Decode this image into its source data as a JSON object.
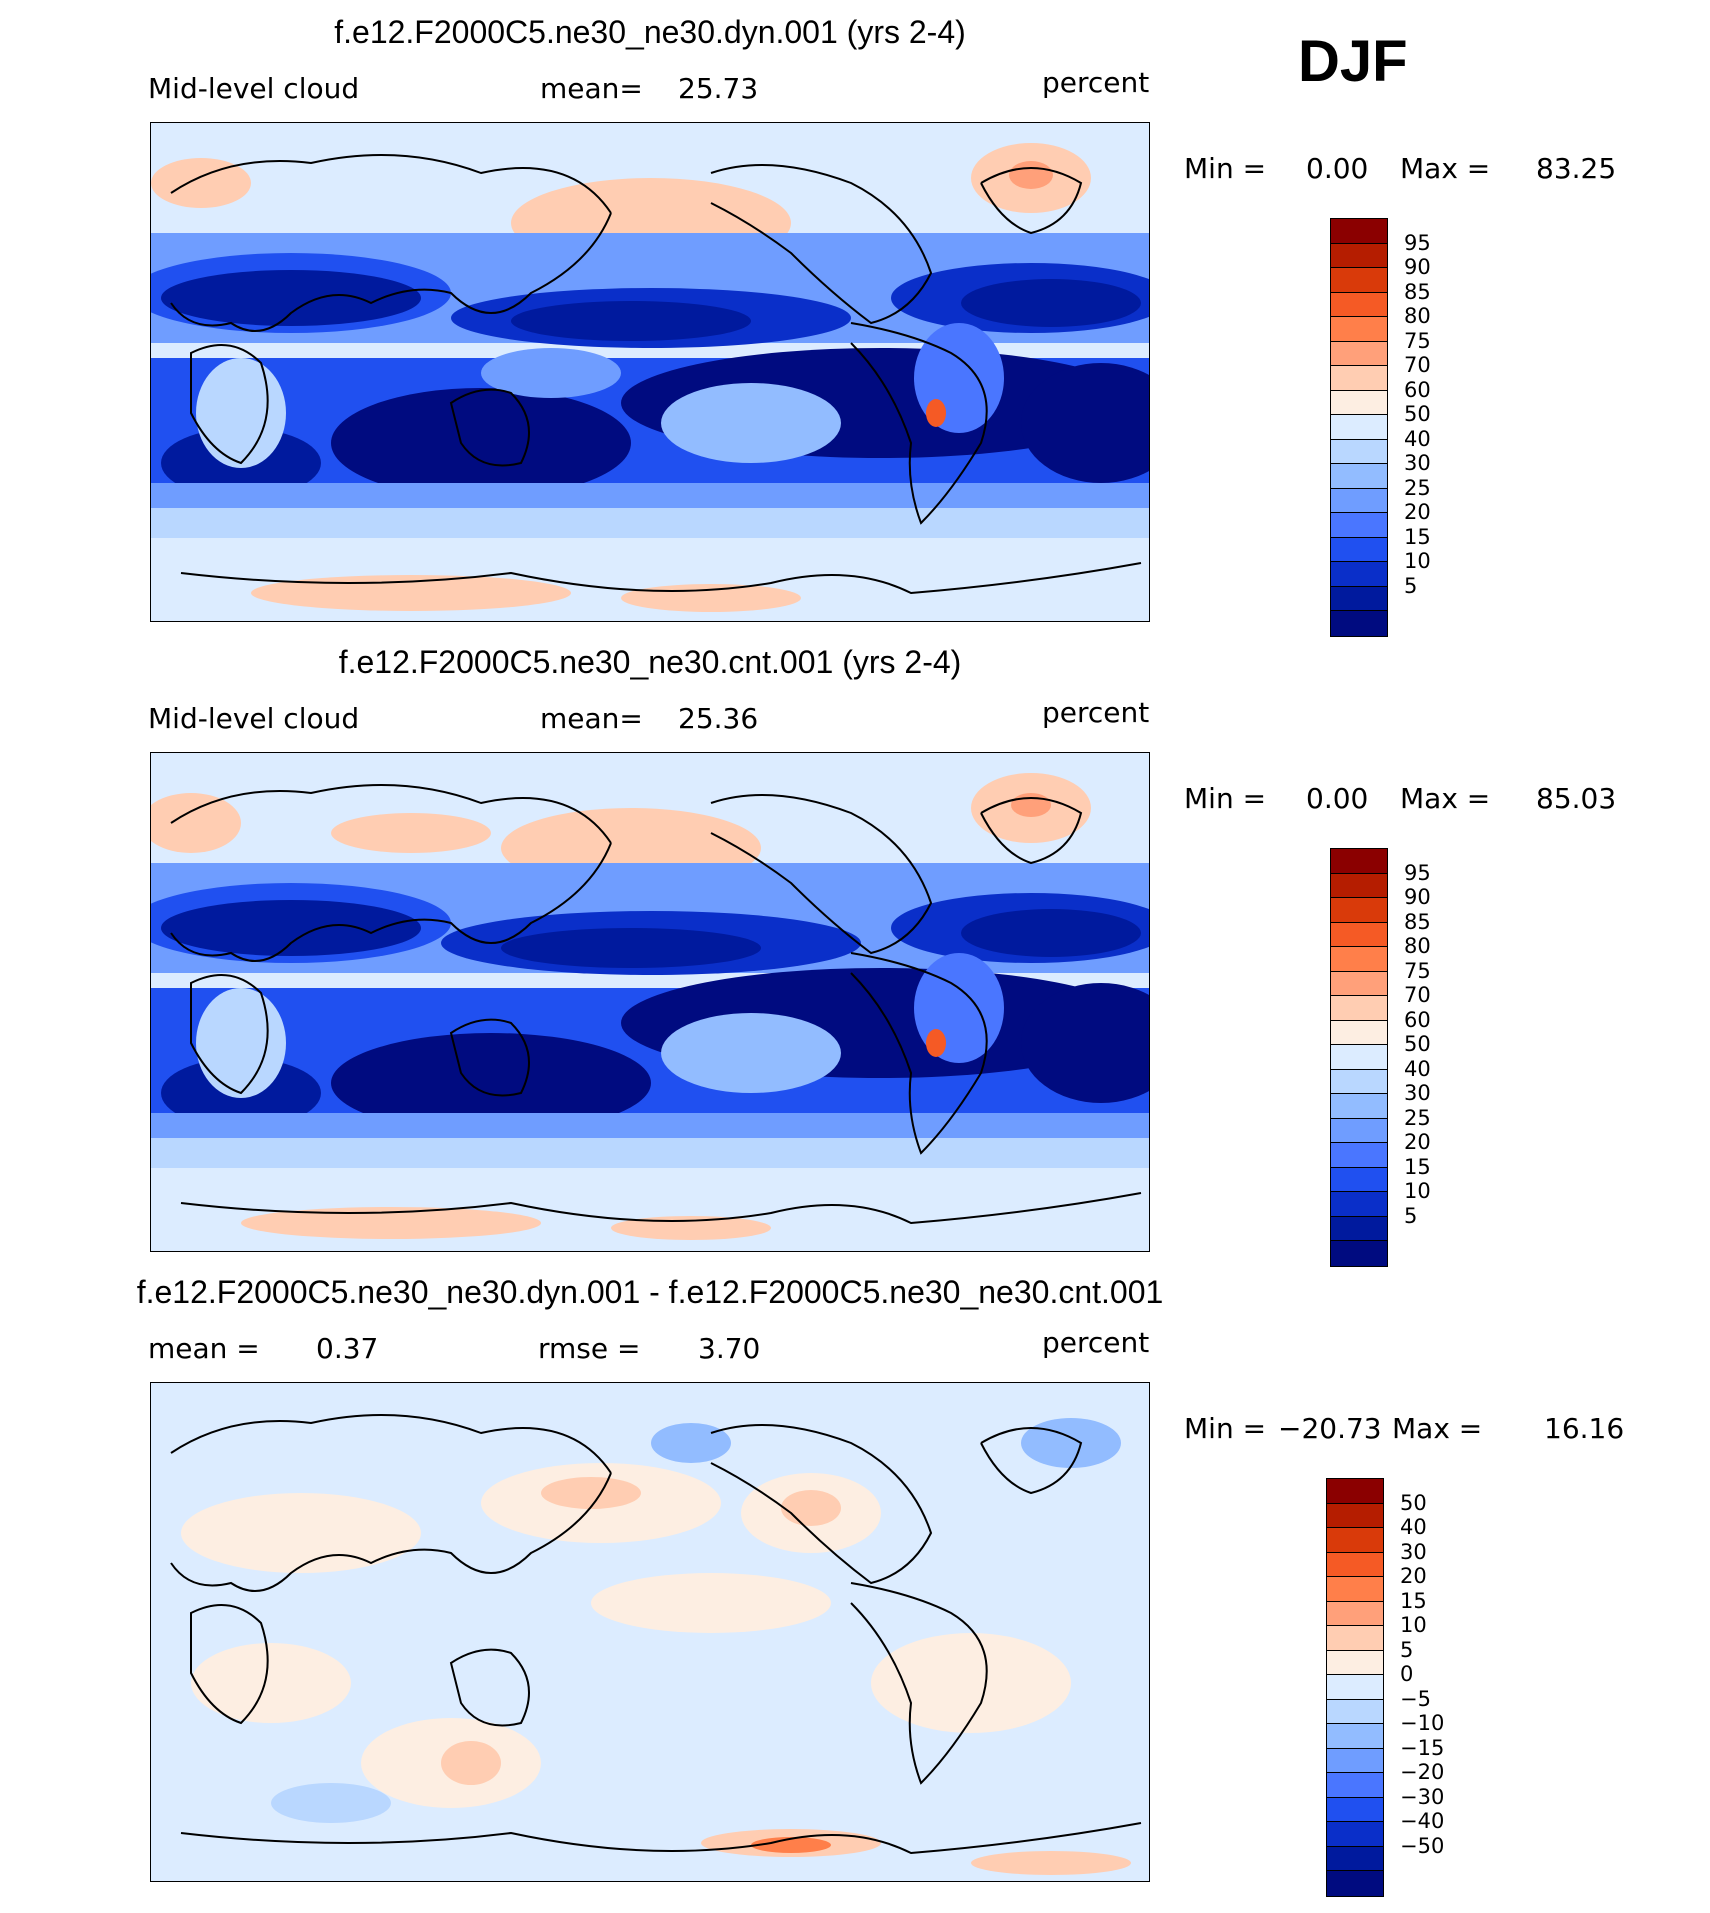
{
  "season": "DJF",
  "panels": [
    {
      "id": "dyn",
      "title": "f.e12.F2000C5.ne30_ne30.dyn.001 (yrs 2-4)",
      "variable": "Mid-level cloud",
      "stat_label": "mean=",
      "stat_value": "25.73",
      "units": "percent",
      "min_label": "Min =",
      "min_value": "0.00",
      "max_label": "Max =",
      "max_value": "83.25",
      "colorbar": {
        "labels": [
          "95",
          "90",
          "85",
          "80",
          "75",
          "70",
          "60",
          "50",
          "40",
          "30",
          "25",
          "20",
          "15",
          "10",
          "5"
        ],
        "colors": [
          "#8b0000",
          "#b51d00",
          "#d93a0a",
          "#f55a25",
          "#ff7f4a",
          "#ffa07a",
          "#ffcdb2",
          "#fdeee2",
          "#dcecff",
          "#b9d7ff",
          "#92bcff",
          "#6f9dff",
          "#4a76ff",
          "#2050f0",
          "#0a2fc9",
          "#001a9e",
          "#000b80"
        ]
      }
    },
    {
      "id": "cnt",
      "title": "f.e12.F2000C5.ne30_ne30.cnt.001 (yrs 2-4)",
      "variable": "Mid-level cloud",
      "stat_label": "mean=",
      "stat_value": "25.36",
      "units": "percent",
      "min_label": "Min =",
      "min_value": "0.00",
      "max_label": "Max =",
      "max_value": "85.03",
      "colorbar": {
        "labels": [
          "95",
          "90",
          "85",
          "80",
          "75",
          "70",
          "60",
          "50",
          "40",
          "30",
          "25",
          "20",
          "15",
          "10",
          "5"
        ],
        "colors": [
          "#8b0000",
          "#b51d00",
          "#d93a0a",
          "#f55a25",
          "#ff7f4a",
          "#ffa07a",
          "#ffcdb2",
          "#fdeee2",
          "#dcecff",
          "#b9d7ff",
          "#92bcff",
          "#6f9dff",
          "#4a76ff",
          "#2050f0",
          "#0a2fc9",
          "#001a9e",
          "#000b80"
        ]
      }
    },
    {
      "id": "diff",
      "title": "f.e12.F2000C5.ne30_ne30.dyn.001 - f.e12.F2000C5.ne30_ne30.cnt.001",
      "variable": "mean =",
      "variable_value": "0.37",
      "stat_label": "rmse =",
      "stat_value": "3.70",
      "units": "percent",
      "min_label": "Min =",
      "min_value": "−20.73",
      "max_label": "Max =",
      "max_value": "16.16",
      "colorbar": {
        "labels": [
          "50",
          "40",
          "30",
          "20",
          "15",
          "10",
          "5",
          "0",
          "−5",
          "−10",
          "−15",
          "−20",
          "−30",
          "−40",
          "−50"
        ],
        "colors": [
          "#8b0000",
          "#b51d00",
          "#d93a0a",
          "#f55a25",
          "#ff7f4a",
          "#ffa07a",
          "#ffcdb2",
          "#fdeee2",
          "#dcecff",
          "#b9d7ff",
          "#92bcff",
          "#6f9dff",
          "#4a76ff",
          "#2050f0",
          "#0a2fc9",
          "#001a9e",
          "#000b80"
        ]
      }
    }
  ]
}
